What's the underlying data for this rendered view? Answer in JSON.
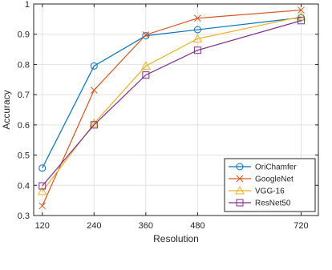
{
  "chart_data": {
    "type": "line",
    "title": "",
    "xlabel": "Resolution",
    "ylabel": "Accuracy",
    "x": [
      120,
      240,
      360,
      480,
      720
    ],
    "xticks": [
      "120",
      "240",
      "360",
      "480",
      "720"
    ],
    "xlim": [
      100,
      760
    ],
    "ylim": [
      0.3,
      1
    ],
    "yticks": [
      "0.3",
      "0.4",
      "0.5",
      "0.6",
      "0.7",
      "0.8",
      "0.9",
      "1"
    ],
    "grid": true,
    "legend_position": "bottom-right",
    "series": [
      {
        "name": "OriChamfer",
        "marker": "circle",
        "color": "#0072BD",
        "values": [
          0.457,
          0.795,
          0.895,
          0.915,
          0.955
        ]
      },
      {
        "name": "GoogleNet",
        "marker": "x",
        "color": "#D95319",
        "values": [
          0.332,
          0.715,
          0.898,
          0.953,
          0.98
        ]
      },
      {
        "name": "VGG-16",
        "marker": "triangle",
        "color": "#EDB120",
        "values": [
          0.38,
          0.605,
          0.795,
          0.885,
          0.958
        ]
      },
      {
        "name": "ResNet50",
        "marker": "square",
        "color": "#7E2F8E",
        "values": [
          0.398,
          0.6,
          0.765,
          0.847,
          0.945
        ]
      }
    ]
  }
}
